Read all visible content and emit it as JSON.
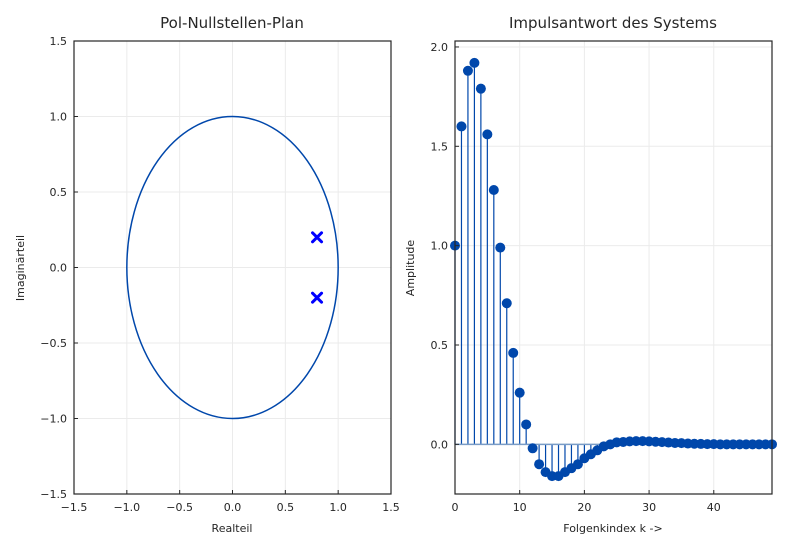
{
  "chart_data": [
    {
      "type": "scatter",
      "title": "Pol-Nullstellen-Plan",
      "xlabel": "Realteil",
      "ylabel": "Imaginärteil",
      "xlim": [
        -1.5,
        1.5
      ],
      "ylim": [
        -1.5,
        1.5
      ],
      "xticks": [
        -1.5,
        -1.0,
        -0.5,
        0.0,
        0.5,
        1.0,
        1.5
      ],
      "yticks": [
        -1.5,
        -1.0,
        -0.5,
        0.0,
        0.5,
        1.0,
        1.5
      ],
      "xtick_labels": [
        "−1.5",
        "−1.0",
        "−0.5",
        "0.0",
        "0.5",
        "1.0",
        "1.5"
      ],
      "ytick_labels": [
        "−1.5",
        "−1.0",
        "−0.5",
        "0.0",
        "0.5",
        "1.0",
        "1.5"
      ],
      "grid": true,
      "unit_circle": {
        "center": [
          0,
          0
        ],
        "radius": 1,
        "color": "#0047ab"
      },
      "poles": [
        {
          "re": 0.8,
          "im": 0.2
        },
        {
          "re": 0.8,
          "im": -0.2
        }
      ],
      "pole_color": "#0000ff",
      "pole_marker": "x"
    },
    {
      "type": "stem",
      "title": "Impulsantwort des Systems",
      "xlabel": "Folgenkindex k ->",
      "ylabel": "Amplitude",
      "xlim": [
        0,
        49
      ],
      "ylim": [
        -0.25,
        2.03
      ],
      "xticks": [
        0,
        10,
        20,
        30,
        40
      ],
      "yticks": [
        0.0,
        0.5,
        1.0,
        1.5,
        2.0
      ],
      "xtick_labels": [
        "0",
        "10",
        "20",
        "30",
        "40"
      ],
      "ytick_labels": [
        "0.0",
        "0.5",
        "1.0",
        "1.5",
        "2.0"
      ],
      "grid": true,
      "color": "#0047ab",
      "baseline_color": "#7a9cc6",
      "x": [
        0,
        1,
        2,
        3,
        4,
        5,
        6,
        7,
        8,
        9,
        10,
        11,
        12,
        13,
        14,
        15,
        16,
        17,
        18,
        19,
        20,
        21,
        22,
        23,
        24,
        25,
        26,
        27,
        28,
        29,
        30,
        31,
        32,
        33,
        34,
        35,
        36,
        37,
        38,
        39,
        40,
        41,
        42,
        43,
        44,
        45,
        46,
        47,
        48,
        49
      ],
      "values": [
        1.0,
        1.6,
        1.88,
        1.92,
        1.79,
        1.56,
        1.28,
        0.99,
        0.71,
        0.46,
        0.26,
        0.1,
        -0.02,
        -0.1,
        -0.14,
        -0.16,
        -0.16,
        -0.14,
        -0.12,
        -0.1,
        -0.07,
        -0.05,
        -0.03,
        -0.01,
        0.0,
        0.01,
        0.012,
        0.015,
        0.016,
        0.016,
        0.015,
        0.013,
        0.011,
        0.009,
        0.007,
        0.006,
        0.004,
        0.003,
        0.002,
        0.001,
        0.001,
        0.0,
        0.0,
        0.0,
        0.0,
        0.0,
        0.0,
        0.0,
        0.0,
        0.0
      ]
    }
  ]
}
